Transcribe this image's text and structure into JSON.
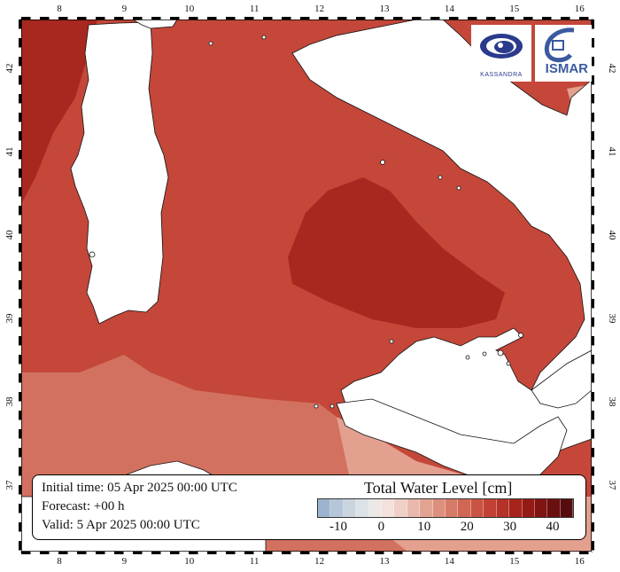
{
  "map": {
    "lon_ticks": [
      "8",
      "9",
      "10",
      "11",
      "12",
      "13",
      "14",
      "15",
      "16"
    ],
    "lat_ticks": [
      "42",
      "41",
      "40",
      "39",
      "38",
      "37"
    ],
    "colors": {
      "sea_deep": "#a8281f",
      "sea_main": "#c4473a",
      "sea_light": "#d2715f",
      "sea_pale": "#e3a08f",
      "land": "#ffffff",
      "coast": "#111111"
    }
  },
  "info": {
    "initial": "Initial time: 05 Apr 2025 00:00 UTC",
    "forecast": "Forecast: +00 h",
    "valid": "Valid:  5 Apr 2025 00:00 UTC"
  },
  "legend": {
    "title": "Total Water Level [cm]",
    "ticks": [
      "-10",
      "0",
      "10",
      "20",
      "30",
      "40"
    ],
    "colors": [
      "#9db4cf",
      "#b5c6d9",
      "#cad5e0",
      "#dce2e8",
      "#ece8e6",
      "#f3e1dc",
      "#efcfc6",
      "#e9b9ad",
      "#e3a393",
      "#dd8f7d",
      "#d67b67",
      "#d06754",
      "#c95443",
      "#c14234",
      "#b53227",
      "#a6241c",
      "#941a16",
      "#7f1412",
      "#6a0f10",
      "#560c0e"
    ]
  },
  "logos": {
    "left_label": "KASSANDRA",
    "right_label": "ISMAR",
    "left_icon": "eye-swirl-icon",
    "right_icon": "wave-icon"
  }
}
